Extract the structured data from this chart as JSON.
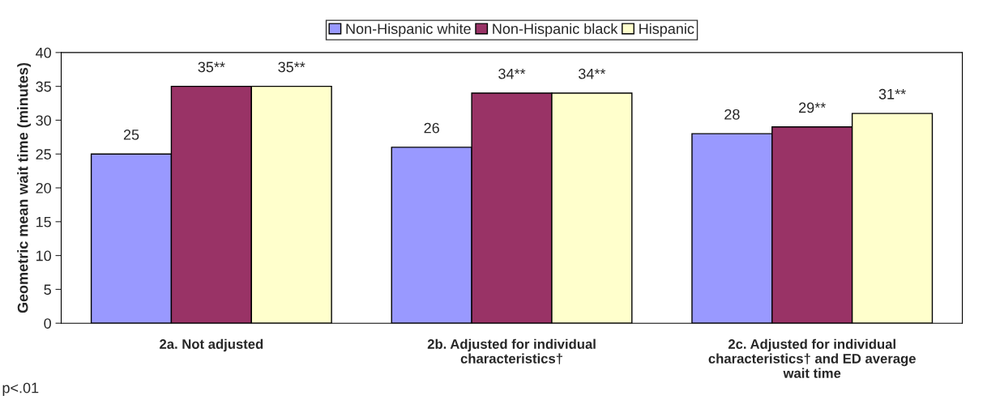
{
  "chart_data": {
    "type": "bar",
    "ylabel": "Geometric mean wait time (minutes)",
    "categories": [
      "2a. Not adjusted",
      "2b. Adjusted for individual\ncharacteristics†",
      "2c. Adjusted for individual\ncharacteristics† and ED average\nwait time"
    ],
    "series": [
      {
        "name": "Non-Hispanic white",
        "color": "#9999ff",
        "values": [
          25,
          26,
          28
        ],
        "value_labels": [
          "25",
          "26",
          "28"
        ]
      },
      {
        "name": "Non-Hispanic black",
        "color": "#993366",
        "values": [
          35,
          34,
          29
        ],
        "value_labels": [
          "35**",
          "34**",
          "29**"
        ]
      },
      {
        "name": "Hispanic",
        "color": "#ffffcc",
        "values": [
          35,
          34,
          31
        ],
        "value_labels": [
          "35**",
          "34**",
          "31**"
        ]
      }
    ],
    "ylim": [
      0,
      40
    ],
    "yticks": [
      0,
      5,
      10,
      15,
      20,
      25,
      30,
      35,
      40
    ],
    "grid": false,
    "legend": "top",
    "annotations": [
      "p<.01"
    ]
  }
}
